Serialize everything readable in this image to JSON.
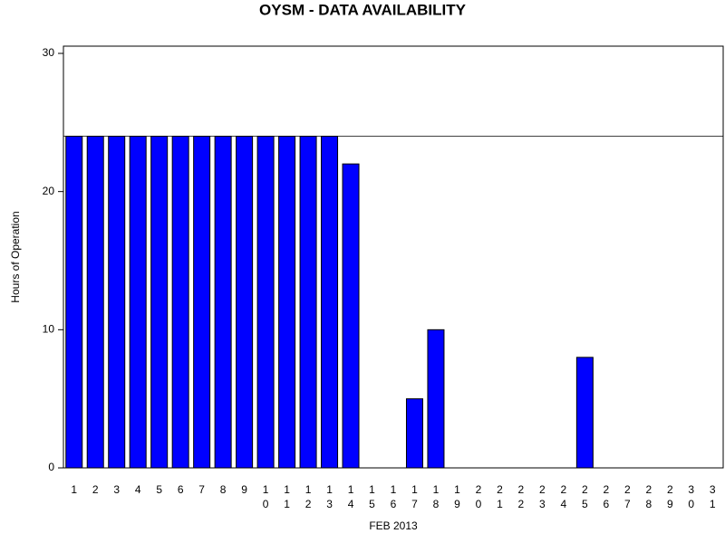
{
  "chart_data": {
    "type": "bar",
    "title": "OYSM - DATA AVAILABILITY",
    "x_label": "FEB 2013",
    "y_label": "Hours of Operation",
    "categories": [
      "1",
      "2",
      "3",
      "4",
      "5",
      "6",
      "7",
      "8",
      "9",
      "10",
      "11",
      "12",
      "13",
      "14",
      "15",
      "16",
      "17",
      "18",
      "19",
      "20",
      "21",
      "22",
      "23",
      "24",
      "25",
      "26",
      "27",
      "28",
      "29",
      "30",
      "31"
    ],
    "values": [
      24,
      24,
      24,
      24,
      24,
      24,
      24,
      24,
      24,
      24,
      24,
      24,
      24,
      22,
      0,
      0,
      5,
      10,
      0,
      0,
      0,
      0,
      0,
      0,
      8,
      0,
      0,
      0,
      0,
      0,
      0
    ],
    "color": "#0000ff",
    "ylim": [
      0,
      30
    ],
    "yticks": [
      0,
      10,
      20,
      30
    ],
    "reference_line": 24
  }
}
